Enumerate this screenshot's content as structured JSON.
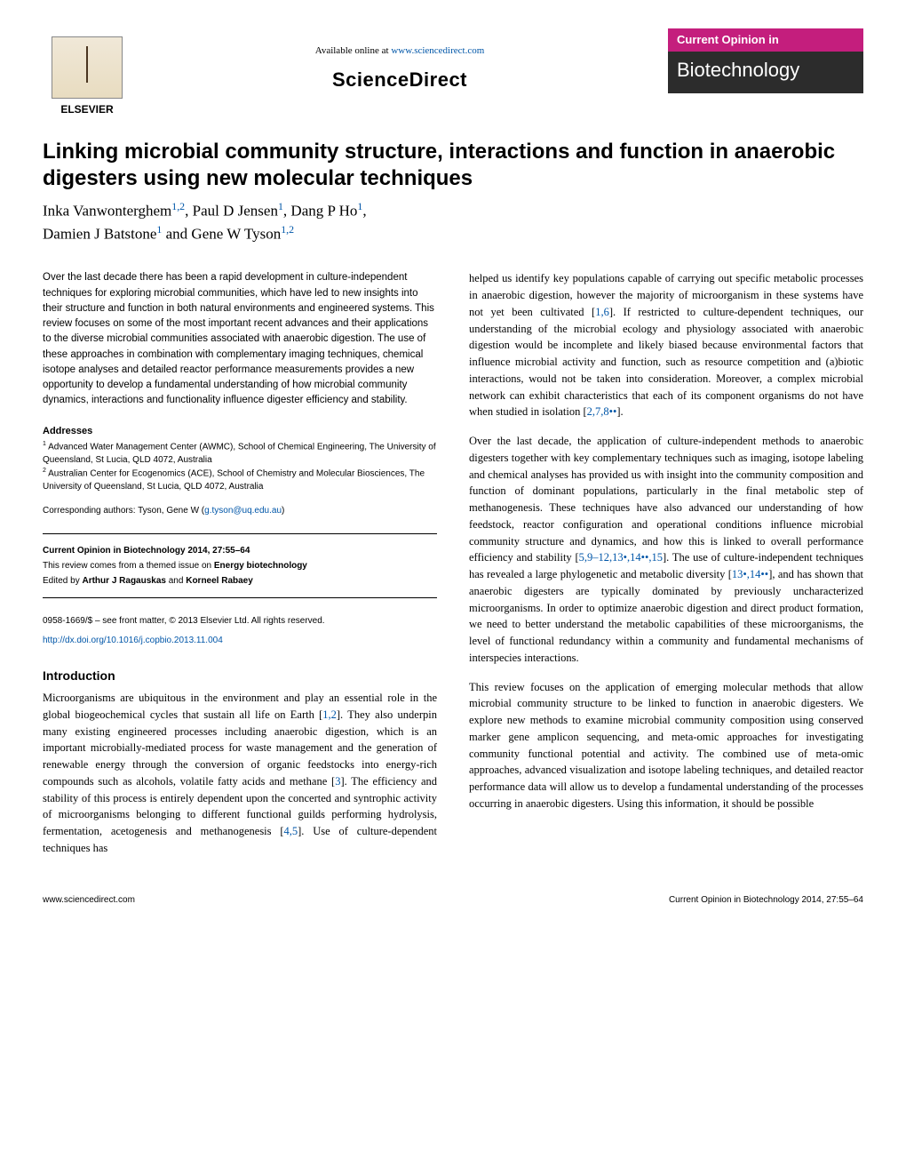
{
  "header": {
    "available_text": "Available online at ",
    "sciencedirect_url": "www.sciencedirect.com",
    "sciencedirect_label": "ScienceDirect",
    "elsevier_label": "ELSEVIER",
    "journal_top": "Current Opinion in",
    "journal_bottom": "Biotechnology"
  },
  "article": {
    "title": "Linking microbial community structure, interactions and function in anaerobic digesters using new molecular techniques",
    "authors_html": "Inka Vanwonterghem",
    "author1_aff": "1,2",
    "sep1": ", Paul D Jensen",
    "author2_aff": "1",
    "sep2": ", Dang P Ho",
    "author3_aff": "1",
    "sep3": ",",
    "line2a": "Damien J Batstone",
    "author4_aff": "1",
    "sep4": " and Gene W Tyson",
    "author5_aff": "1,2"
  },
  "abstract": "Over the last decade there has been a rapid development in culture-independent techniques for exploring microbial communities, which have led to new insights into their structure and function in both natural environments and engineered systems. This review focuses on some of the most important recent advances and their applications to the diverse microbial communities associated with anaerobic digestion. The use of these approaches in combination with complementary imaging techniques, chemical isotope analyses and detailed reactor performance measurements provides a new opportunity to develop a fundamental understanding of how microbial community dynamics, interactions and functionality influence digester efficiency and stability.",
  "addresses": {
    "heading": "Addresses",
    "a1_sup": "1",
    "a1": " Advanced Water Management Center (AWMC), School of Chemical Engineering, The University of Queensland, St Lucia, QLD 4072, Australia",
    "a2_sup": "2",
    "a2": " Australian Center for Ecogenomics (ACE), School of Chemistry and Molecular Biosciences, The University of Queensland, St Lucia, QLD 4072, Australia"
  },
  "corresponding": {
    "label": "Corresponding authors: Tyson, Gene W (",
    "email": "g.tyson@uq.edu.au",
    "close": ")"
  },
  "info": {
    "citation": "Current Opinion in Biotechnology 2014, 27:55–64",
    "themed1": "This review comes from a themed issue on ",
    "themed_bold": "Energy biotechnology",
    "edited1": "Edited by ",
    "editor1": "Arthur J Ragauskas",
    "and": " and ",
    "editor2": "Korneel Rabaey"
  },
  "copyright": {
    "issn": "0958-1669/$ – see front matter, © 2013 Elsevier Ltd. All rights reserved.",
    "doi": "http://dx.doi.org/10.1016/j.copbio.2013.11.004"
  },
  "intro_heading": "Introduction",
  "intro_p1a": "Microorganisms are ubiquitous in the environment and play an essential role in the global biogeochemical cycles that sustain all life on Earth [",
  "intro_p1_ref1": "1,2",
  "intro_p1b": "]. They also underpin many existing engineered processes including anaerobic digestion, which is an important microbially-mediated process for waste management and the generation of renewable energy through the conversion of organic feedstocks into energy-rich compounds such as alcohols, volatile fatty acids and methane [",
  "intro_p1_ref2": "3",
  "intro_p1c": "]. The efficiency and stability of this process is entirely dependent upon the concerted and syntrophic activity of microorganisms belonging to different functional guilds performing hydrolysis, fermentation, acetogenesis and methanogenesis [",
  "intro_p1_ref3": "4,5",
  "intro_p1d": "]. Use of culture-dependent techniques has ",
  "right_p1a": "helped us identify key populations capable of carrying out specific metabolic processes in anaerobic digestion, however the majority of microorganism in these systems have not yet been cultivated [",
  "right_p1_ref1": "1,6",
  "right_p1b": "]. If restricted to culture-dependent techniques, our understanding of the microbial ecology and physiology associated with anaerobic digestion would be incomplete and likely biased because environmental factors that influence microbial activity and function, such as resource competition and (a)biotic interactions, would not be taken into consideration. Moreover, a complex microbial network can exhibit characteristics that each of its component organisms do not have when studied in isolation [",
  "right_p1_ref2": "2,7,8••",
  "right_p1c": "].",
  "right_p2a": "Over the last decade, the application of culture-independent methods to anaerobic digesters together with key complementary techniques such as imaging, isotope labeling and chemical analyses has provided us with insight into the community composition and function of dominant populations, particularly in the final metabolic step of methanogenesis. These techniques have also advanced our understanding of how feedstock, reactor configuration and operational conditions influence microbial community structure and dynamics, and how this is linked to overall performance efficiency and stability [",
  "right_p2_ref1": "5,9–12,13•,14••,15",
  "right_p2b": "]. The use of culture-independent techniques has revealed a large phylogenetic and metabolic diversity [",
  "right_p2_ref2": "13•,14••",
  "right_p2c": "], and has shown that anaerobic digesters are typically dominated by previously uncharacterized microorganisms. In order to optimize anaerobic digestion and direct product formation, we need to better understand the metabolic capabilities of these microorganisms, the level of functional redundancy within a community and fundamental mechanisms of interspecies interactions.",
  "right_p3": "This review focuses on the application of emerging molecular methods that allow microbial community structure to be linked to function in anaerobic digesters. We explore new methods to examine microbial community composition using conserved marker gene amplicon sequencing, and meta-omic approaches for investigating community functional potential and activity. The combined use of meta-omic approaches, advanced visualization and isotope labeling techniques, and detailed reactor performance data will allow us to develop a fundamental understanding of the processes occurring in anaerobic digesters. Using this information, it should be possible",
  "footer": {
    "left": "www.sciencedirect.com",
    "right": "Current Opinion in Biotechnology 2014, 27:55–64"
  },
  "colors": {
    "link": "#0056a8",
    "journal_pink": "#c41e7d",
    "journal_dark": "#2c2c2c"
  }
}
